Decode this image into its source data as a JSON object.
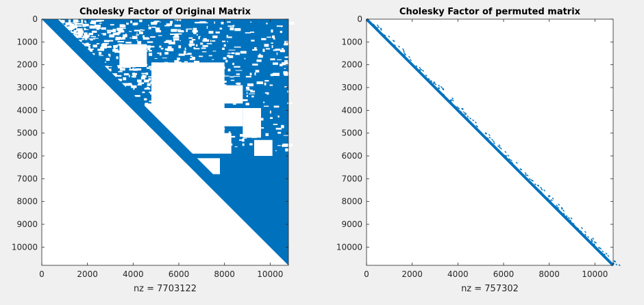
{
  "chart_data": [
    {
      "type": "spy",
      "title": "Cholesky Factor of Original Matrix",
      "xlabel": "nz = 7703122",
      "ylabel": "",
      "n": 10800,
      "xlim": [
        0,
        10800
      ],
      "ylim": [
        0,
        10800
      ],
      "y_reversed": true,
      "x_ticks": [
        0,
        2000,
        4000,
        6000,
        8000,
        10000
      ],
      "y_ticks": [
        0,
        1000,
        2000,
        3000,
        4000,
        5000,
        6000,
        7000,
        8000,
        9000,
        10000
      ],
      "x_tick_labels": [
        "0",
        "2000",
        "4000",
        "6000",
        "8000",
        "10000"
      ],
      "y_tick_labels": [
        "0",
        "1000",
        "2000",
        "3000",
        "4000",
        "5000",
        "6000",
        "7000",
        "8000",
        "9000",
        "10000"
      ],
      "nz": 7703122,
      "structure": "upper-triangular, dense fill-in",
      "color": "#0072bd"
    },
    {
      "type": "spy",
      "title": "Cholesky Factor of permuted matrix",
      "xlabel": "nz = 757302",
      "ylabel": "",
      "n": 10800,
      "xlim": [
        0,
        10800
      ],
      "ylim": [
        0,
        10800
      ],
      "y_reversed": true,
      "x_ticks": [
        0,
        2000,
        4000,
        6000,
        8000,
        10000
      ],
      "y_ticks": [
        0,
        1000,
        2000,
        3000,
        4000,
        5000,
        6000,
        7000,
        8000,
        9000,
        10000
      ],
      "x_tick_labels": [
        "0",
        "2000",
        "4000",
        "6000",
        "8000",
        "10000"
      ],
      "y_tick_labels": [
        "0",
        "1000",
        "2000",
        "3000",
        "4000",
        "5000",
        "6000",
        "7000",
        "8000",
        "9000",
        "10000"
      ],
      "nz": 757302,
      "structure": "narrow band along the diagonal",
      "color": "#0072bd"
    }
  ]
}
